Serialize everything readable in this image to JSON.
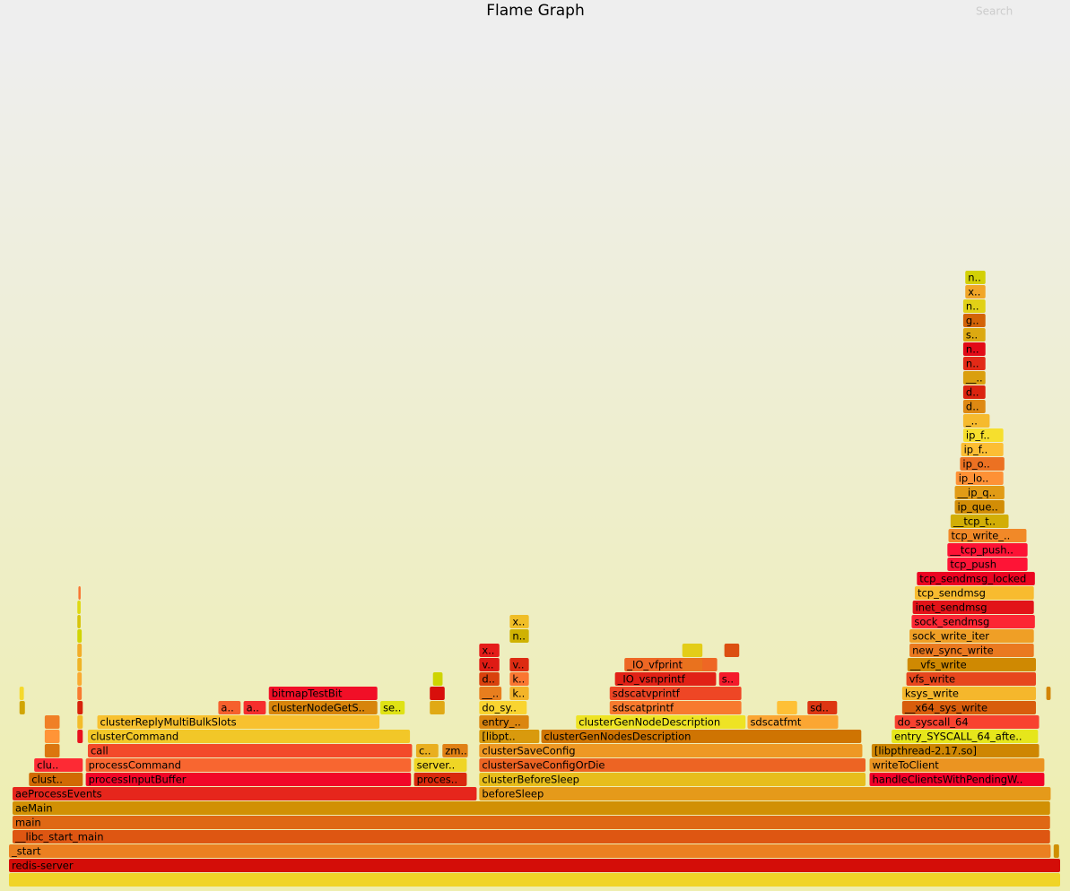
{
  "chart_data": {
    "type": "flame",
    "title": "Flame Graph",
    "search": "Search",
    "frames": [
      {
        "name": null,
        "level": 0,
        "start": 0,
        "width": 100
      },
      {
        "name": "redis-server",
        "level": 1,
        "start": 0,
        "width": 100
      },
      {
        "name": "_start",
        "level": 2,
        "start": 0,
        "width": 99.1
      },
      {
        "name": "__libc_start_main",
        "level": 3,
        "start": 0.34,
        "width": 98.7
      },
      {
        "name": "main",
        "level": 4,
        "start": 0.34,
        "width": 98.7
      },
      {
        "name": "aeMain",
        "level": 5,
        "start": 0.34,
        "width": 98.7
      },
      {
        "name": "aeProcessEvents",
        "level": 6,
        "start": 0.34,
        "width": 44.2
      },
      {
        "name": "beforeSleep",
        "level": 6,
        "start": 44.7,
        "width": 54.4
      },
      {
        "name": "clust..",
        "level": 7,
        "start": 1.9,
        "width": 5.2
      },
      {
        "name": "processInputBuffer",
        "level": 7,
        "start": 7.3,
        "width": 31.0
      },
      {
        "name": "proces..",
        "level": 7,
        "start": 38.5,
        "width": 5.1
      },
      {
        "name": "clusterBeforeSleep",
        "level": 7,
        "start": 44.7,
        "width": 36.8
      },
      {
        "name": "handleClientsWithPendingW..",
        "level": 7,
        "start": 81.8,
        "width": 16.7
      },
      {
        "name": "clu..",
        "level": 8,
        "start": 2.4,
        "width": 4.7
      },
      {
        "name": "processCommand",
        "level": 8,
        "start": 7.3,
        "width": 31.0
      },
      {
        "name": "server..",
        "level": 8,
        "start": 38.5,
        "width": 5.1
      },
      {
        "name": "clusterSaveConfigOrDie",
        "level": 8,
        "start": 44.7,
        "width": 36.8
      },
      {
        "name": "writeToClient",
        "level": 8,
        "start": 81.8,
        "width": 16.7
      },
      {
        "name": "call",
        "level": 9,
        "start": 7.5,
        "width": 30.9
      },
      {
        "name": "c..",
        "level": 9,
        "start": 38.7,
        "width": 2.2
      },
      {
        "name": "zm..",
        "level": 9,
        "start": 41.2,
        "width": 2.5
      },
      {
        "name": "clusterSaveConfig",
        "level": 9,
        "start": 44.7,
        "width": 36.5
      },
      {
        "name": "[libpthread-2.17.so]",
        "level": 9,
        "start": 82.0,
        "width": 16.0
      },
      {
        "name": "clusterCommand",
        "level": 10,
        "start": 7.5,
        "width": 30.7
      },
      {
        "name": "[libpt..",
        "level": 10,
        "start": 44.7,
        "width": 5.8
      },
      {
        "name": "clusterGenNodesDescription",
        "level": 10,
        "start": 50.6,
        "width": 30.5
      },
      {
        "name": "entry_SYSCALL_64_afte..",
        "level": 10,
        "start": 83.9,
        "width": 14.0
      },
      {
        "name": "clusterReplyMultiBulkSlots",
        "level": 11,
        "start": 8.4,
        "width": 26.9
      },
      {
        "name": "entry_..",
        "level": 11,
        "start": 44.7,
        "width": 4.8
      },
      {
        "name": "clusterGenNodeDescription",
        "level": 11,
        "start": 53.9,
        "width": 16.2
      },
      {
        "name": "sdscatfmt",
        "level": 11,
        "start": 70.2,
        "width": 8.7
      },
      {
        "name": "do_syscall_64",
        "level": 11,
        "start": 84.2,
        "width": 13.8
      },
      {
        "name": "a..",
        "level": 12,
        "start": 19.9,
        "width": 2.2
      },
      {
        "name": "a..",
        "level": 12,
        "start": 22.3,
        "width": 2.2
      },
      {
        "name": "clusterNodeGetS..",
        "level": 12,
        "start": 24.7,
        "width": 10.4
      },
      {
        "name": "se..",
        "level": 12,
        "start": 35.3,
        "width": 2.4
      },
      {
        "name": "do_sy..",
        "level": 12,
        "start": 44.7,
        "width": 4.6
      },
      {
        "name": "sdscatprintf",
        "level": 12,
        "start": 57.1,
        "width": 12.6
      },
      {
        "name": "sd..",
        "level": 12,
        "start": 75.9,
        "width": 2.9
      },
      {
        "name": "__x64_sys_write",
        "level": 12,
        "start": 84.9,
        "width": 12.8
      },
      {
        "name": "bitmapTestBit",
        "level": 13,
        "start": 24.7,
        "width": 10.4
      },
      {
        "name": "__..",
        "level": 13,
        "start": 44.7,
        "width": 2.2
      },
      {
        "name": "k..",
        "level": 13,
        "start": 47.6,
        "width": 1.9
      },
      {
        "name": "sdscatvprintf",
        "level": 13,
        "start": 57.1,
        "width": 12.6
      },
      {
        "name": "ksys_write",
        "level": 13,
        "start": 84.9,
        "width": 12.8
      },
      {
        "name": "d..",
        "level": 14,
        "start": 44.7,
        "width": 2.0
      },
      {
        "name": "k..",
        "level": 14,
        "start": 47.6,
        "width": 1.9
      },
      {
        "name": "_IO_vsnprintf",
        "level": 14,
        "start": 57.6,
        "width": 9.7
      },
      {
        "name": "s..",
        "level": 14,
        "start": 67.5,
        "width": 2.0
      },
      {
        "name": "vfs_write",
        "level": 14,
        "start": 85.3,
        "width": 12.4
      },
      {
        "name": "v..",
        "level": 15,
        "start": 44.7,
        "width": 2.0
      },
      {
        "name": "v..",
        "level": 15,
        "start": 47.6,
        "width": 1.9
      },
      {
        "name": "_IO_vfprintf..",
        "level": 15,
        "start": 58.5,
        "width": 8.9
      },
      {
        "name": "__vfs_write",
        "level": 15,
        "start": 85.4,
        "width": 12.3
      },
      {
        "name": "x..",
        "level": 16,
        "start": 44.7,
        "width": 2.0
      },
      {
        "name": "new_sync_write",
        "level": 16,
        "start": 85.6,
        "width": 11.9
      },
      {
        "name": "n..",
        "level": 17,
        "start": 47.6,
        "width": 1.9
      },
      {
        "name": "sock_write_iter",
        "level": 17,
        "start": 85.6,
        "width": 11.9
      },
      {
        "name": "x..",
        "level": 18,
        "start": 47.6,
        "width": 1.9
      },
      {
        "name": "sock_sendmsg",
        "level": 18,
        "start": 85.8,
        "width": 11.8
      },
      {
        "name": "inet_sendmsg",
        "level": 19,
        "start": 85.9,
        "width": 11.6
      },
      {
        "name": "tcp_sendmsg",
        "level": 20,
        "start": 86.1,
        "width": 11.4
      },
      {
        "name": "tcp_sendmsg_locked",
        "level": 21,
        "start": 86.3,
        "width": 11.3
      },
      {
        "name": "tcp_push",
        "level": 22,
        "start": 89.2,
        "width": 7.7
      },
      {
        "name": "__tcp_push..",
        "level": 23,
        "start": 89.2,
        "width": 7.7
      },
      {
        "name": "tcp_write_..",
        "level": 24,
        "start": 89.3,
        "width": 7.5
      },
      {
        "name": "__tcp_t..",
        "level": 25,
        "start": 89.5,
        "width": 5.6
      },
      {
        "name": "ip_que..",
        "level": 26,
        "start": 89.9,
        "width": 4.8
      },
      {
        "name": "__ip_q..",
        "level": 27,
        "start": 89.9,
        "width": 4.8
      },
      {
        "name": "ip_lo..",
        "level": 28,
        "start": 90.0,
        "width": 4.6
      },
      {
        "name": "ip_o..",
        "level": 29,
        "start": 90.4,
        "width": 4.3
      },
      {
        "name": "ip_f..",
        "level": 30,
        "start": 90.5,
        "width": 4.1
      },
      {
        "name": "ip_f..",
        "level": 31,
        "start": 90.7,
        "width": 3.9
      },
      {
        "name": "_..",
        "level": 32,
        "start": 90.7,
        "width": 2.6
      },
      {
        "name": "d..",
        "level": 33,
        "start": 90.7,
        "width": 2.2
      },
      {
        "name": "d..",
        "level": 34,
        "start": 90.7,
        "width": 2.2
      },
      {
        "name": "__..",
        "level": 35,
        "start": 90.7,
        "width": 2.2
      },
      {
        "name": "n..",
        "level": 36,
        "start": 90.7,
        "width": 2.2
      },
      {
        "name": "n..",
        "level": 37,
        "start": 90.7,
        "width": 2.2
      },
      {
        "name": "s..",
        "level": 38,
        "start": 90.7,
        "width": 2.2
      },
      {
        "name": "g..",
        "level": 39,
        "start": 90.7,
        "width": 2.2
      },
      {
        "name": "n..",
        "level": 40,
        "start": 90.7,
        "width": 2.2
      },
      {
        "name": "x..",
        "level": 41,
        "start": 90.9,
        "width": 2.0
      },
      {
        "name": "n..",
        "level": 42,
        "start": 90.9,
        "width": 2.0
      },
      {
        "name": null,
        "level": 2,
        "start": 99.3,
        "width": 0.6
      },
      {
        "name": null,
        "level": 9,
        "start": 3.4,
        "width": 1.5
      },
      {
        "name": null,
        "level": 10,
        "start": 3.4,
        "width": 1.5
      },
      {
        "name": null,
        "level": 11,
        "start": 3.4,
        "width": 1.5
      },
      {
        "name": null,
        "level": 10,
        "start": 6.5,
        "width": 0.6
      },
      {
        "name": null,
        "level": 11,
        "start": 6.5,
        "width": 0.6
      },
      {
        "name": null,
        "level": 12,
        "start": 6.5,
        "width": 0.6
      },
      {
        "name": null,
        "level": 13,
        "start": 6.5,
        "width": 0.5
      },
      {
        "name": null,
        "level": 14,
        "start": 6.5,
        "width": 0.5
      },
      {
        "name": null,
        "level": 15,
        "start": 6.5,
        "width": 0.5
      },
      {
        "name": null,
        "level": 16,
        "start": 6.5,
        "width": 0.5
      },
      {
        "name": null,
        "level": 17,
        "start": 6.5,
        "width": 0.5
      },
      {
        "name": null,
        "level": 18,
        "start": 6.5,
        "width": 0.4
      },
      {
        "name": null,
        "level": 19,
        "start": 6.5,
        "width": 0.4
      },
      {
        "name": null,
        "level": 20,
        "start": 6.6,
        "width": 0.3
      },
      {
        "name": null,
        "level": 12,
        "start": 40.0,
        "width": 1.5
      },
      {
        "name": null,
        "level": 13,
        "start": 40.0,
        "width": 1.5
      },
      {
        "name": null,
        "level": 14,
        "start": 40.3,
        "width": 1.0
      },
      {
        "name": null,
        "level": 12,
        "start": 73.0,
        "width": 2.0
      },
      {
        "name": null,
        "level": 15,
        "start": 64.0,
        "width": 2.0
      },
      {
        "name": null,
        "level": 16,
        "start": 64.0,
        "width": 2.0
      },
      {
        "name": null,
        "level": 16,
        "start": 68.0,
        "width": 1.5
      },
      {
        "name": null,
        "level": 13,
        "start": 98.6,
        "width": 0.5
      },
      {
        "name": null,
        "level": 12,
        "start": 1.0,
        "width": 0.6
      },
      {
        "name": null,
        "level": 13,
        "start": 1.0,
        "width": 0.5
      }
    ]
  }
}
